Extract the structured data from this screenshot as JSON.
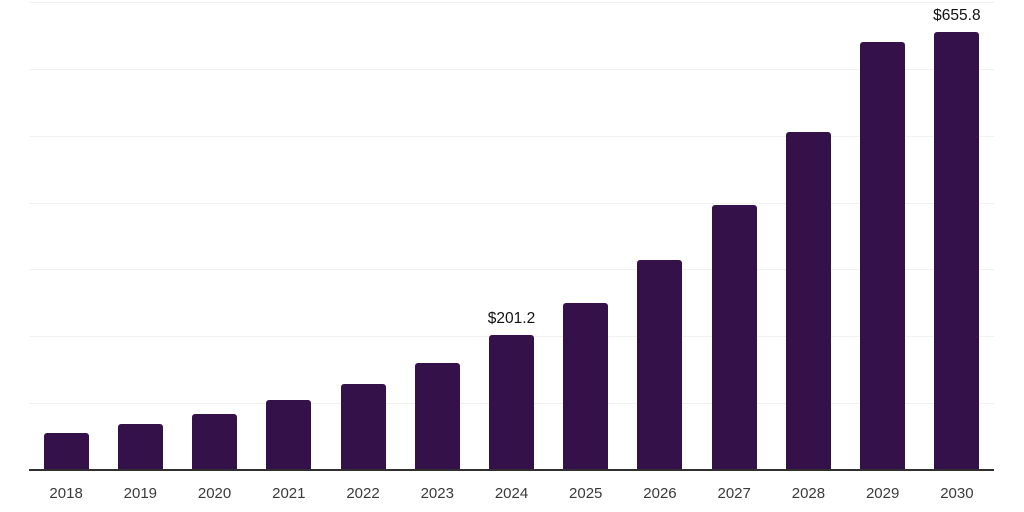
{
  "chart_data": {
    "type": "bar",
    "title": "",
    "xlabel": "",
    "ylabel": "",
    "categories": [
      "2018",
      "2019",
      "2020",
      "2021",
      "2022",
      "2023",
      "2024",
      "2025",
      "2026",
      "2027",
      "2028",
      "2029",
      "2030"
    ],
    "values": [
      55.9,
      69.5,
      84.4,
      105.3,
      129.2,
      160.6,
      201.2,
      250.2,
      314.4,
      396.6,
      505.7,
      640.0,
      655.8
    ],
    "value_labels": [
      {
        "category": "2024",
        "text": "$201.2"
      },
      {
        "category": "2030",
        "text": "$655.8"
      }
    ],
    "currency_prefix": "$",
    "ylim": [
      0,
      700
    ],
    "gridline_step": 100,
    "grid": "horizontal-only",
    "legend": "none",
    "y_axis_tick_labels_visible": false
  },
  "style": {
    "background_color": "#ffffff",
    "bar_color": "#35114A",
    "axis_line_color": "#303030",
    "gridline_color": "#f1f1f2",
    "tick_label_color": "#3a3a3a",
    "value_label_color": "#111111"
  }
}
